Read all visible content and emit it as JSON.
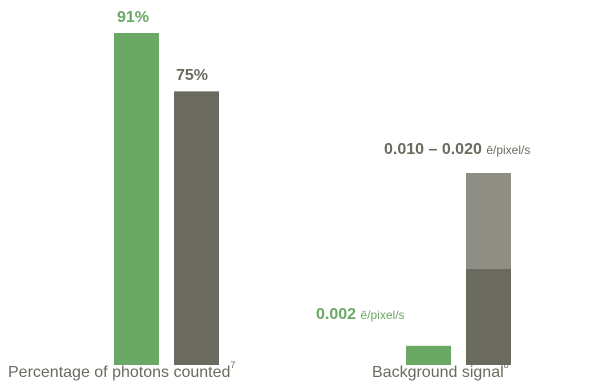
{
  "chart_data": [
    {
      "type": "bar",
      "categories": [
        "Percentage of photons counted"
      ],
      "footnote": "7",
      "unit": "%",
      "series": [
        {
          "values": [
            91
          ],
          "label": "91%",
          "color": "#6aa866"
        },
        {
          "values": [
            75
          ],
          "label": "75%",
          "color": "#6b6a5e"
        }
      ],
      "ylim": [
        0,
        100
      ]
    },
    {
      "type": "bar",
      "categories": [
        "Background signal"
      ],
      "footnote": "8",
      "unit": "ē/pixel/s",
      "series": [
        {
          "values": [
            0.002
          ],
          "label": "0.002",
          "color": "#6aa866"
        },
        {
          "range": [
            0.01,
            0.02
          ],
          "label": "0.010 – 0.020",
          "colors": [
            "#6b6a5e",
            "#8f8e85"
          ]
        }
      ],
      "ylim": [
        0,
        0.021
      ]
    }
  ]
}
